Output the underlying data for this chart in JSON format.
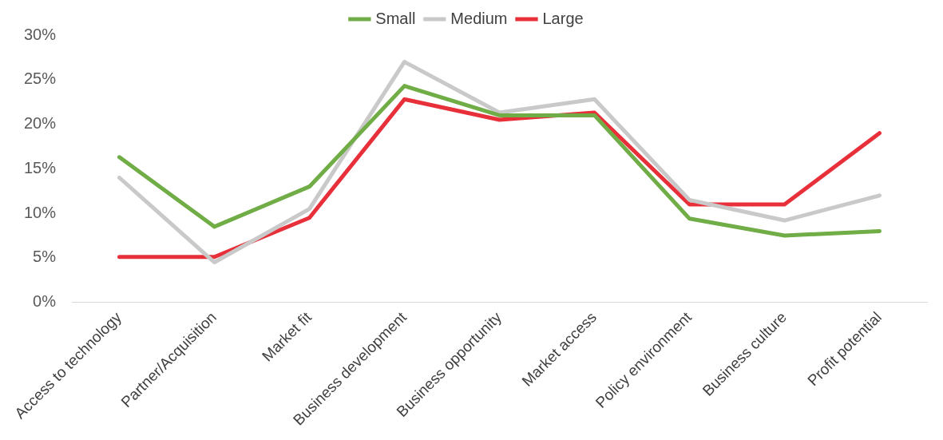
{
  "chart_data": {
    "type": "line",
    "categories": [
      "Access to technology",
      "Partner/Acquisition",
      "Market fit",
      "Business development",
      "Business opportunity",
      "Market access",
      "Policy environment",
      "Business culture",
      "Profit potential"
    ],
    "series": [
      {
        "name": "Small",
        "color": "#70ad47",
        "values": [
          16.3,
          8.5,
          13,
          24.3,
          21,
          21,
          9.4,
          7.5,
          8
        ]
      },
      {
        "name": "Medium",
        "color": "#c9c9c9",
        "values": [
          14,
          4.5,
          10.5,
          27,
          21.3,
          22.8,
          11.5,
          9.2,
          12
        ]
      },
      {
        "name": "Large",
        "color": "#e8303a",
        "values": [
          5.1,
          5.1,
          9.5,
          22.8,
          20.5,
          21.3,
          11,
          11,
          19
        ]
      }
    ],
    "ylim": [
      0,
      30
    ],
    "yticks": [
      {
        "value": 0,
        "label": "0%"
      },
      {
        "value": 5,
        "label": "5%"
      },
      {
        "value": 10,
        "label": "10%"
      },
      {
        "value": 15,
        "label": "15%"
      },
      {
        "value": 20,
        "label": "20%"
      },
      {
        "value": 25,
        "label": "25%"
      },
      {
        "value": 30,
        "label": "30%"
      }
    ],
    "grid": false,
    "legend": "top"
  }
}
